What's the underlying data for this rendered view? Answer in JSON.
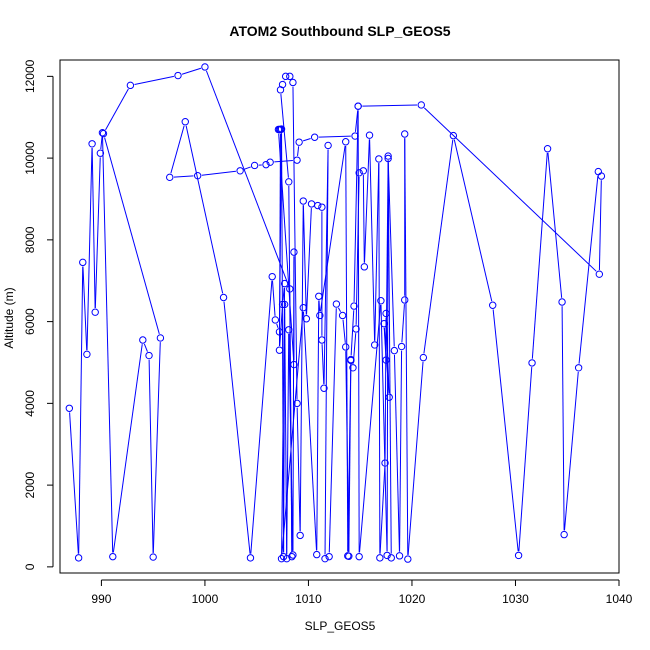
{
  "chart_data": {
    "type": "line",
    "title": "ATOM2 Southbound SLP_GEOS5",
    "xlabel": "SLP_GEOS5",
    "ylabel": "Altitude (m)",
    "xlim": [
      986,
      1040
    ],
    "ylim": [
      -150,
      12400
    ],
    "xticks": [
      990,
      1000,
      1010,
      1020,
      1030,
      1040
    ],
    "yticks": [
      0,
      2000,
      4000,
      6000,
      8000,
      10000,
      12000
    ],
    "grid": false,
    "legend": "none",
    "colors": {
      "series": "#0000ff",
      "axis": "#000000"
    },
    "series": [
      {
        "marker": "open-circle",
        "points": [
          [
            986.9,
            3880
          ],
          [
            987.8,
            220
          ],
          [
            988.2,
            7450
          ],
          [
            988.6,
            5200
          ],
          [
            989.1,
            10350
          ],
          [
            989.4,
            6230
          ],
          [
            989.9,
            10120
          ],
          [
            990.1,
            10620
          ],
          [
            991.1,
            250
          ],
          [
            994.0,
            5550
          ],
          [
            994.6,
            5170
          ],
          [
            995.0,
            240
          ],
          [
            995.7,
            5600
          ],
          [
            990.2,
            10600
          ],
          [
            992.8,
            11780
          ],
          [
            997.4,
            12020
          ],
          [
            1000.0,
            12230
          ],
          [
            1008.2,
            6800
          ],
          [
            1008.4,
            250
          ],
          [
            1008.1,
            9420
          ],
          [
            1007.3,
            11670
          ],
          [
            1007.5,
            11800
          ],
          [
            1007.8,
            12000
          ],
          [
            1008.2,
            12000
          ],
          [
            1008.5,
            11850
          ],
          [
            1008.9,
            4000
          ],
          [
            1009.2,
            770
          ],
          [
            1009.5,
            8950
          ],
          [
            1009.8,
            6070
          ],
          [
            1010.3,
            8880
          ],
          [
            1010.9,
            8840
          ],
          [
            1011.3,
            8800
          ],
          [
            1011.3,
            5550
          ],
          [
            1011.5,
            4370
          ],
          [
            1011.9,
            10310
          ],
          [
            1011.6,
            200
          ],
          [
            1012.0,
            250
          ],
          [
            1012.7,
            6430
          ],
          [
            1013.3,
            6150
          ],
          [
            1013.6,
            5380
          ],
          [
            1013.9,
            260
          ],
          [
            1014.1,
            5050
          ],
          [
            1014.3,
            4870
          ],
          [
            1014.6,
            5820
          ],
          [
            1014.9,
            9640
          ],
          [
            1015.3,
            9690
          ],
          [
            1015.4,
            7340
          ],
          [
            1015.9,
            10560
          ],
          [
            1016.4,
            5430
          ],
          [
            1016.8,
            9980
          ],
          [
            1016.9,
            220
          ],
          [
            1017.4,
            2540
          ],
          [
            1017.5,
            6200
          ],
          [
            1017.8,
            4150
          ],
          [
            1017.3,
            5950
          ],
          [
            1017.5,
            5060
          ],
          [
            1017.7,
            9990
          ],
          [
            1018.3,
            5290
          ],
          [
            1018.8,
            270
          ],
          [
            1019.0,
            5390
          ],
          [
            1019.3,
            6530
          ],
          [
            1019.3,
            10590
          ],
          [
            1019.6,
            190
          ],
          [
            1021.1,
            5120
          ],
          [
            1024.0,
            10550
          ],
          [
            1027.8,
            6400
          ],
          [
            1030.3,
            280
          ],
          [
            1031.6,
            4990
          ],
          [
            1033.1,
            10230
          ],
          [
            1034.5,
            6480
          ],
          [
            1034.7,
            790
          ],
          [
            1036.1,
            4870
          ],
          [
            1038.0,
            9670
          ],
          [
            1038.3,
            9560
          ],
          [
            1038.1,
            7160
          ],
          [
            1020.9,
            11300
          ],
          [
            1014.8,
            11270
          ],
          [
            1014.5,
            10540
          ],
          [
            1010.6,
            10510
          ],
          [
            1009.1,
            10390
          ],
          [
            1008.9,
            9950
          ],
          [
            1006.3,
            9900
          ],
          [
            1005.9,
            9840
          ],
          [
            1004.8,
            9820
          ],
          [
            1003.4,
            9690
          ],
          [
            999.3,
            9570
          ],
          [
            996.6,
            9530
          ],
          [
            998.1,
            10890
          ],
          [
            1001.8,
            6590
          ],
          [
            1004.4,
            220
          ],
          [
            1006.5,
            7100
          ],
          [
            1006.8,
            6040
          ],
          [
            1007.2,
            5750
          ],
          [
            1007.4,
            10710
          ],
          [
            1007.6,
            250
          ],
          [
            1007.7,
            6420
          ],
          [
            1007.9,
            200
          ],
          [
            1008.1,
            5800
          ],
          [
            1008.5,
            290
          ],
          [
            1008.6,
            7700
          ],
          [
            1008.6,
            4950
          ],
          [
            1007.1,
            10700
          ],
          [
            1007.2,
            10700
          ],
          [
            1007.3,
            10700
          ],
          [
            1007.2,
            5300
          ],
          [
            1007.5,
            6420
          ],
          [
            1007.7,
            6930
          ],
          [
            1007.4,
            200
          ],
          [
            1009.5,
            6340
          ],
          [
            1010.8,
            300
          ],
          [
            1011.0,
            6620
          ],
          [
            1011.1,
            6150
          ],
          [
            1013.6,
            10400
          ],
          [
            1013.8,
            270
          ],
          [
            1014.1,
            5070
          ],
          [
            1014.4,
            6380
          ],
          [
            1014.8,
            11270
          ],
          [
            1014.9,
            250
          ],
          [
            1017.0,
            6510
          ],
          [
            1017.6,
            280
          ],
          [
            1017.7,
            10050
          ],
          [
            1018.0,
            220
          ]
        ]
      }
    ]
  }
}
